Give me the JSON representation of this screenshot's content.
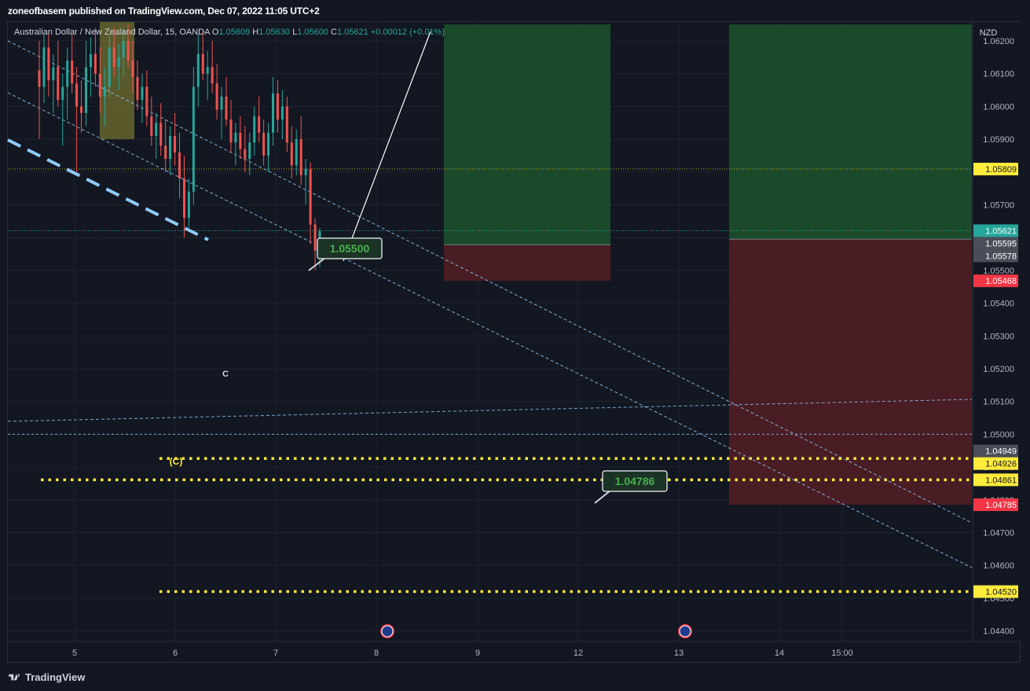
{
  "header": {
    "publisher": "zoneofbasem",
    "publish_text": "zoneofbasem published on TradingView.com, Dec 07, 2022 11:05 UTC+2"
  },
  "legend": {
    "symbol": "Australian Dollar / New Zealand Dollar, 15, OANDA",
    "open_label": "O",
    "open": "1.05609",
    "high_label": "H",
    "high": "1.05630",
    "low_label": "L",
    "low": "1.05600",
    "close_label": "C",
    "close": "1.05621",
    "change": "+0.00012 (+0.01%)"
  },
  "footer": {
    "brand": "TradingView"
  },
  "colors": {
    "background": "#131722",
    "up": "#26a69a",
    "down": "#ef5350",
    "profit_zone": "#1b4a2a",
    "loss_zone": "#4a1c24",
    "yellow": "#ffeb3b",
    "trendline": "#90caf9"
  },
  "chart_data": {
    "type": "candlestick",
    "currency": "NZD",
    "y_ticks": [
      "1.04400",
      "1.04500",
      "1.04600",
      "1.04700",
      "1.04800",
      "1.04900",
      "1.05000",
      "1.05100",
      "1.05200",
      "1.05300",
      "1.05400",
      "1.05500",
      "1.05600",
      "1.05700",
      "1.05800",
      "1.05900",
      "1.06000",
      "1.06100",
      "1.06200"
    ],
    "ylim": [
      1.0434,
      1.0625
    ],
    "x_ticks": [
      "5",
      "6",
      "7",
      "8",
      "9",
      "12",
      "13",
      "14",
      "15:00"
    ],
    "price_tags": [
      {
        "label": "1.05809",
        "value": 1.05809,
        "bg": "#ffeb3b",
        "fg": "#131722"
      },
      {
        "label": "1.05621",
        "value": 1.05621,
        "bg": "#26a69a",
        "fg": "#ffffff"
      },
      {
        "label": "1.05595",
        "value": 1.05595,
        "bg": "#4a4e59",
        "fg": "#ffffff"
      },
      {
        "label": "1.05578",
        "value": 1.05578,
        "bg": "#4a4e59",
        "fg": "#ffffff"
      },
      {
        "label": "1.05468",
        "value": 1.05468,
        "bg": "#f23645",
        "fg": "#ffffff"
      },
      {
        "label": "1.04949",
        "value": 1.04949,
        "bg": "#4a4e59",
        "fg": "#ffffff"
      },
      {
        "label": "1.04926",
        "value": 1.04926,
        "bg": "#ffeb3b",
        "fg": "#131722"
      },
      {
        "label": "1.04861",
        "value": 1.04861,
        "bg": "#ffeb3b",
        "fg": "#131722"
      },
      {
        "label": "1.04785",
        "value": 1.04785,
        "bg": "#f23645",
        "fg": "#ffffff"
      },
      {
        "label": "1.04520",
        "value": 1.0452,
        "bg": "#ffeb3b",
        "fg": "#131722"
      }
    ],
    "callouts": [
      {
        "label": "1.05500",
        "value": 1.055
      },
      {
        "label": "1.04786",
        "value": 1.04786
      }
    ],
    "annotations": [
      "C",
      "(C)"
    ],
    "horizontal_levels": [
      1.04926,
      1.04861,
      1.0452,
      1.05,
      1.05809,
      1.05621
    ],
    "candles": [
      {
        "o": 1.0611,
        "h": 1.062,
        "l": 1.059,
        "c": 1.0606
      },
      {
        "o": 1.0606,
        "h": 1.0622,
        "l": 1.0601,
        "c": 1.0618
      },
      {
        "o": 1.0618,
        "h": 1.0623,
        "l": 1.0603,
        "c": 1.0608
      },
      {
        "o": 1.0608,
        "h": 1.0616,
        "l": 1.0598,
        "c": 1.0612
      },
      {
        "o": 1.0612,
        "h": 1.062,
        "l": 1.06,
        "c": 1.0602
      },
      {
        "o": 1.0602,
        "h": 1.061,
        "l": 1.0588,
        "c": 1.0606
      },
      {
        "o": 1.0606,
        "h": 1.0618,
        "l": 1.0596,
        "c": 1.0614
      },
      {
        "o": 1.0614,
        "h": 1.0622,
        "l": 1.0604,
        "c": 1.0607
      },
      {
        "o": 1.0607,
        "h": 1.0612,
        "l": 1.058,
        "c": 1.06
      },
      {
        "o": 1.06,
        "h": 1.0608,
        "l": 1.0592,
        "c": 1.0598
      },
      {
        "o": 1.0598,
        "h": 1.062,
        "l": 1.0594,
        "c": 1.0612
      },
      {
        "o": 1.0612,
        "h": 1.0621,
        "l": 1.0603,
        "c": 1.0616
      },
      {
        "o": 1.0616,
        "h": 1.0624,
        "l": 1.0606,
        "c": 1.061
      },
      {
        "o": 1.061,
        "h": 1.0618,
        "l": 1.0598,
        "c": 1.0603
      },
      {
        "o": 1.0603,
        "h": 1.0612,
        "l": 1.0594,
        "c": 1.0606
      },
      {
        "o": 1.0606,
        "h": 1.0622,
        "l": 1.0603,
        "c": 1.0618
      },
      {
        "o": 1.0618,
        "h": 1.0624,
        "l": 1.0609,
        "c": 1.0612
      },
      {
        "o": 1.0612,
        "h": 1.0619,
        "l": 1.0605,
        "c": 1.0615
      },
      {
        "o": 1.0615,
        "h": 1.0624,
        "l": 1.0609,
        "c": 1.062
      },
      {
        "o": 1.062,
        "h": 1.0625,
        "l": 1.0612,
        "c": 1.0614
      },
      {
        "o": 1.0614,
        "h": 1.062,
        "l": 1.0604,
        "c": 1.0609
      },
      {
        "o": 1.0609,
        "h": 1.0614,
        "l": 1.0599,
        "c": 1.0602
      },
      {
        "o": 1.0602,
        "h": 1.061,
        "l": 1.0595,
        "c": 1.0606
      },
      {
        "o": 1.0606,
        "h": 1.0611,
        "l": 1.0594,
        "c": 1.0597
      },
      {
        "o": 1.0597,
        "h": 1.0603,
        "l": 1.0588,
        "c": 1.0591
      },
      {
        "o": 1.0591,
        "h": 1.0598,
        "l": 1.0584,
        "c": 1.0595
      },
      {
        "o": 1.0595,
        "h": 1.0601,
        "l": 1.0585,
        "c": 1.0588
      },
      {
        "o": 1.0588,
        "h": 1.0596,
        "l": 1.058,
        "c": 1.0584
      },
      {
        "o": 1.0584,
        "h": 1.0594,
        "l": 1.0579,
        "c": 1.0591
      },
      {
        "o": 1.0591,
        "h": 1.0598,
        "l": 1.0582,
        "c": 1.0586
      },
      {
        "o": 1.0586,
        "h": 1.0592,
        "l": 1.0572,
        "c": 1.0578
      },
      {
        "o": 1.0578,
        "h": 1.0585,
        "l": 1.056,
        "c": 1.0566
      },
      {
        "o": 1.0566,
        "h": 1.0578,
        "l": 1.0563,
        "c": 1.0574
      },
      {
        "o": 1.0574,
        "h": 1.0612,
        "l": 1.057,
        "c": 1.0606
      },
      {
        "o": 1.0606,
        "h": 1.0622,
        "l": 1.06,
        "c": 1.0616
      },
      {
        "o": 1.0616,
        "h": 1.0623,
        "l": 1.0608,
        "c": 1.061
      },
      {
        "o": 1.061,
        "h": 1.0617,
        "l": 1.0602,
        "c": 1.0612
      },
      {
        "o": 1.0612,
        "h": 1.062,
        "l": 1.0604,
        "c": 1.0607
      },
      {
        "o": 1.0607,
        "h": 1.0613,
        "l": 1.0596,
        "c": 1.0599
      },
      {
        "o": 1.0599,
        "h": 1.0606,
        "l": 1.059,
        "c": 1.0603
      },
      {
        "o": 1.0603,
        "h": 1.0609,
        "l": 1.0594,
        "c": 1.0596
      },
      {
        "o": 1.0596,
        "h": 1.0602,
        "l": 1.0586,
        "c": 1.0589
      },
      {
        "o": 1.0589,
        "h": 1.0595,
        "l": 1.0582,
        "c": 1.0592
      },
      {
        "o": 1.0592,
        "h": 1.0597,
        "l": 1.0584,
        "c": 1.0587
      },
      {
        "o": 1.0587,
        "h": 1.0594,
        "l": 1.058,
        "c": 1.0584
      },
      {
        "o": 1.0584,
        "h": 1.0592,
        "l": 1.0579,
        "c": 1.0589
      },
      {
        "o": 1.0589,
        "h": 1.06,
        "l": 1.0585,
        "c": 1.0597
      },
      {
        "o": 1.0597,
        "h": 1.0603,
        "l": 1.0589,
        "c": 1.0592
      },
      {
        "o": 1.0592,
        "h": 1.0596,
        "l": 1.0582,
        "c": 1.0585
      },
      {
        "o": 1.0585,
        "h": 1.0595,
        "l": 1.058,
        "c": 1.0592
      },
      {
        "o": 1.0592,
        "h": 1.0609,
        "l": 1.0588,
        "c": 1.0604
      },
      {
        "o": 1.0604,
        "h": 1.0608,
        "l": 1.0592,
        "c": 1.0596
      },
      {
        "o": 1.0596,
        "h": 1.0605,
        "l": 1.059,
        "c": 1.06
      },
      {
        "o": 1.06,
        "h": 1.0603,
        "l": 1.0586,
        "c": 1.0589
      },
      {
        "o": 1.0589,
        "h": 1.0594,
        "l": 1.0578,
        "c": 1.0582
      },
      {
        "o": 1.0582,
        "h": 1.0593,
        "l": 1.0579,
        "c": 1.059
      },
      {
        "o": 1.059,
        "h": 1.0597,
        "l": 1.0576,
        "c": 1.0579
      },
      {
        "o": 1.0579,
        "h": 1.0584,
        "l": 1.057,
        "c": 1.0581
      },
      {
        "o": 1.0581,
        "h": 1.0583,
        "l": 1.0558,
        "c": 1.0564
      },
      {
        "o": 1.0564,
        "h": 1.0566,
        "l": 1.055,
        "c": 1.0556
      },
      {
        "o": 1.0556,
        "h": 1.0563,
        "l": 1.0551,
        "c": 1.0562
      }
    ]
  }
}
